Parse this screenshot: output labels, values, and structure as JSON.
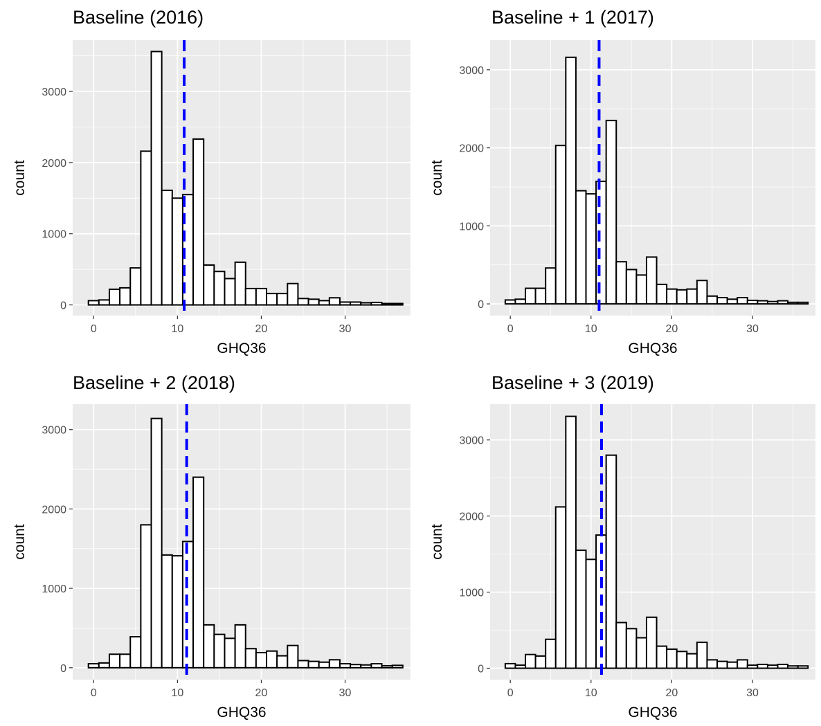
{
  "colors": {
    "panel_background": "#ebebeb",
    "grid_major": "#ffffff",
    "bar_fill": "#ffffff",
    "bar_outline": "#000000",
    "mean_line": "#0000ff",
    "tick_text": "#4d4d4d"
  },
  "chart_data": [
    {
      "type": "bar",
      "title": "Baseline (2016)",
      "xlabel": "GHQ36",
      "ylabel": "count",
      "xlim": [
        -2.5,
        37.8
      ],
      "ylim": [
        -150,
        3720
      ],
      "xticks": [
        0,
        10,
        20,
        30
      ],
      "yticks": [
        0,
        1000,
        2000,
        3000
      ],
      "bin_width": 1.25,
      "bin_starts": [
        -0.625,
        0.625,
        1.875,
        3.125,
        4.375,
        5.625,
        6.875,
        8.125,
        9.375,
        10.625,
        11.875,
        13.125,
        14.375,
        15.625,
        16.875,
        18.125,
        19.375,
        20.625,
        21.875,
        23.125,
        24.375,
        25.625,
        26.875,
        28.125,
        29.375,
        30.625,
        31.875,
        33.125,
        34.375,
        35.625
      ],
      "values": [
        60,
        70,
        220,
        240,
        520,
        2160,
        3560,
        1610,
        1500,
        1550,
        2330,
        560,
        470,
        370,
        600,
        230,
        230,
        160,
        160,
        300,
        90,
        80,
        60,
        100,
        40,
        40,
        30,
        35,
        20,
        20
      ],
      "mean_line_x": 10.8,
      "grid": true,
      "legend": "none"
    },
    {
      "type": "bar",
      "title": "Baseline + 1 (2017)",
      "xlabel": "GHQ36",
      "ylabel": "count",
      "xlim": [
        -2.5,
        37.8
      ],
      "ylim": [
        -150,
        3380
      ],
      "xticks": [
        0,
        10,
        20,
        30
      ],
      "yticks": [
        0,
        1000,
        2000,
        3000
      ],
      "bin_width": 1.25,
      "bin_starts": [
        -0.625,
        0.625,
        1.875,
        3.125,
        4.375,
        5.625,
        6.875,
        8.125,
        9.375,
        10.625,
        11.875,
        13.125,
        14.375,
        15.625,
        16.875,
        18.125,
        19.375,
        20.625,
        21.875,
        23.125,
        24.375,
        25.625,
        26.875,
        28.125,
        29.375,
        30.625,
        31.875,
        33.125,
        34.375,
        35.625
      ],
      "values": [
        50,
        60,
        200,
        200,
        460,
        2030,
        3160,
        1450,
        1410,
        1570,
        2350,
        540,
        440,
        370,
        600,
        250,
        190,
        180,
        190,
        300,
        100,
        80,
        60,
        80,
        45,
        40,
        30,
        40,
        20,
        20
      ],
      "mean_line_x": 11.0,
      "grid": true,
      "legend": "none"
    },
    {
      "type": "bar",
      "title": "Baseline + 2 (2018)",
      "xlabel": "GHQ36",
      "ylabel": "count",
      "xlim": [
        -2.5,
        37.8
      ],
      "ylim": [
        -150,
        3320
      ],
      "xticks": [
        0,
        10,
        20,
        30
      ],
      "yticks": [
        0,
        1000,
        2000,
        3000
      ],
      "bin_width": 1.25,
      "bin_starts": [
        -0.625,
        0.625,
        1.875,
        3.125,
        4.375,
        5.625,
        6.875,
        8.125,
        9.375,
        10.625,
        11.875,
        13.125,
        14.375,
        15.625,
        16.875,
        18.125,
        19.375,
        20.625,
        21.875,
        23.125,
        24.375,
        25.625,
        26.875,
        28.125,
        29.375,
        30.625,
        31.875,
        33.125,
        34.375,
        35.625
      ],
      "values": [
        50,
        60,
        170,
        170,
        390,
        1800,
        3140,
        1420,
        1410,
        1590,
        2400,
        540,
        420,
        370,
        540,
        240,
        190,
        210,
        150,
        280,
        90,
        80,
        70,
        100,
        50,
        40,
        35,
        50,
        25,
        30
      ],
      "mean_line_x": 11.1,
      "grid": true,
      "legend": "none"
    },
    {
      "type": "bar",
      "title": "Baseline + 3 (2019)",
      "xlabel": "GHQ36",
      "ylabel": "count",
      "xlim": [
        -2.5,
        37.8
      ],
      "ylim": [
        -150,
        3470
      ],
      "xticks": [
        0,
        10,
        20,
        30
      ],
      "yticks": [
        0,
        1000,
        2000,
        3000
      ],
      "bin_width": 1.25,
      "bin_starts": [
        -0.625,
        0.625,
        1.875,
        3.125,
        4.375,
        5.625,
        6.875,
        8.125,
        9.375,
        10.625,
        11.875,
        13.125,
        14.375,
        15.625,
        16.875,
        18.125,
        19.375,
        20.625,
        21.875,
        23.125,
        24.375,
        25.625,
        26.875,
        28.125,
        29.375,
        30.625,
        31.875,
        33.125,
        34.375,
        35.625
      ],
      "values": [
        60,
        40,
        180,
        160,
        380,
        2120,
        3310,
        1550,
        1430,
        1750,
        2800,
        600,
        520,
        400,
        670,
        290,
        250,
        220,
        190,
        340,
        110,
        90,
        80,
        110,
        40,
        50,
        40,
        50,
        30,
        30
      ],
      "mean_line_x": 11.3,
      "grid": true,
      "legend": "none"
    }
  ]
}
